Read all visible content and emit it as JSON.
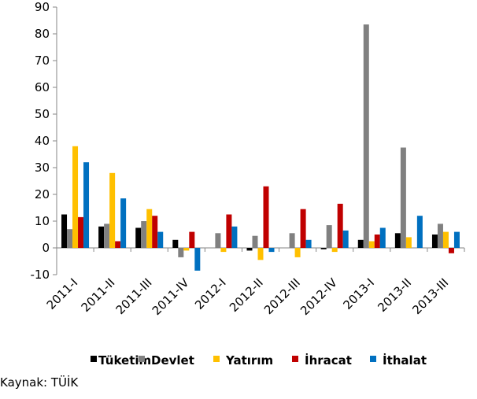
{
  "chart_data": {
    "type": "bar",
    "categories": [
      "2011-I",
      "2011-II",
      "2011-III",
      "2011-IV",
      "2012-I",
      "2012-II",
      "2012-III",
      "2012-IV",
      "2013-I",
      "2013-II",
      "2013-III"
    ],
    "series": [
      {
        "name": "Tüketim",
        "color": "#000000",
        "values": [
          12.5,
          8,
          7.5,
          3,
          0,
          -1,
          0,
          -0.5,
          3,
          5.5,
          5
        ]
      },
      {
        "name": "Devlet",
        "color": "#808080",
        "values": [
          7,
          9,
          10,
          -3.5,
          5.5,
          4.5,
          5.5,
          8.5,
          83.5,
          37.5,
          9
        ]
      },
      {
        "name": "Yatırım",
        "color": "#ffc000",
        "values": [
          38,
          28,
          14.5,
          -1,
          -1.5,
          -4.5,
          -3.5,
          -1.5,
          2.5,
          4,
          6
        ]
      },
      {
        "name": "İhracat",
        "color": "#c00000",
        "values": [
          11.5,
          2.5,
          12,
          6,
          12.5,
          23,
          14.5,
          16.5,
          5,
          0,
          -2
        ]
      },
      {
        "name": "İthalat",
        "color": "#0070c0",
        "values": [
          32,
          18.5,
          6,
          -8.5,
          8,
          -1.5,
          3,
          6.5,
          7.5,
          12,
          6
        ]
      }
    ],
    "ylim": [
      -10,
      90
    ],
    "yticks": [
      -10,
      0,
      10,
      20,
      30,
      40,
      50,
      60,
      70,
      80,
      90
    ],
    "source": "Kaynak: TÜİK"
  }
}
